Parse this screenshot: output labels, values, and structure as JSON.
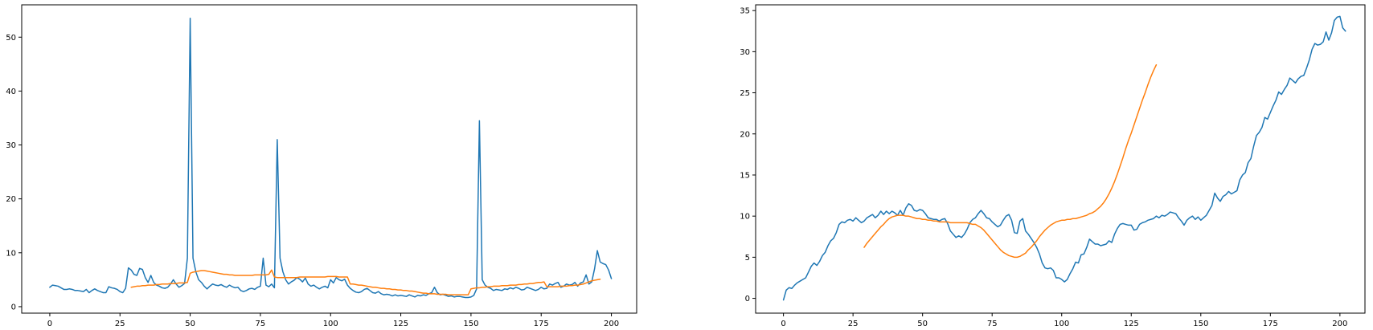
{
  "colors": {
    "series_1": "#1f77b4",
    "series_2": "#ff7f0e"
  },
  "chart_data": [
    {
      "type": "line",
      "title": "",
      "xlabel": "",
      "ylabel": "",
      "xlim": [
        -10,
        209
      ],
      "ylim": [
        -1.2,
        56
      ],
      "grid": false,
      "x_ticks": [
        0,
        25,
        50,
        75,
        100,
        125,
        150,
        175,
        200
      ],
      "y_ticks": [
        0,
        10,
        20,
        30,
        40,
        50
      ],
      "series": [
        {
          "color": "#1f77b4",
          "x_start": 0,
          "x_step": 1,
          "values": [
            3.6,
            4.0,
            3.9,
            3.8,
            3.5,
            3.2,
            3.2,
            3.3,
            3.2,
            3.0,
            3.0,
            2.9,
            2.8,
            3.2,
            2.6,
            3.0,
            3.3,
            3.0,
            2.8,
            2.6,
            2.6,
            3.7,
            3.5,
            3.4,
            3.2,
            2.8,
            2.6,
            3.4,
            7.2,
            6.8,
            6.0,
            5.8,
            7.1,
            6.9,
            5.4,
            4.5,
            5.8,
            4.5,
            4.0,
            3.8,
            3.5,
            3.4,
            3.6,
            4.2,
            5.0,
            4.2,
            3.6,
            3.9,
            4.3,
            9.0,
            53.5,
            9.0,
            6.5,
            5.0,
            4.5,
            3.8,
            3.3,
            3.8,
            4.2,
            4.0,
            3.9,
            4.1,
            3.8,
            3.6,
            4.0,
            3.7,
            3.5,
            3.6,
            3.0,
            2.8,
            3.0,
            3.3,
            3.4,
            3.2,
            3.6,
            3.8,
            9.0,
            4.0,
            3.7,
            4.2,
            3.5,
            31.0,
            9.0,
            6.5,
            5.0,
            4.2,
            4.6,
            4.9,
            5.4,
            5.1,
            4.6,
            5.3,
            4.2,
            3.8,
            4.0,
            3.6,
            3.3,
            3.6,
            3.8,
            3.5,
            5.0,
            4.4,
            5.4,
            5.0,
            4.8,
            5.1,
            4.0,
            3.4,
            3.0,
            2.7,
            2.6,
            2.8,
            3.2,
            3.4,
            3.0,
            2.6,
            2.5,
            2.8,
            2.4,
            2.2,
            2.3,
            2.2,
            2.0,
            2.2,
            2.0,
            2.1,
            2.0,
            1.9,
            2.2,
            2.0,
            1.8,
            2.1,
            2.0,
            2.2,
            2.1,
            2.4,
            2.6,
            3.6,
            2.6,
            2.2,
            2.3,
            2.1,
            1.9,
            2.0,
            1.8,
            1.9,
            1.9,
            1.8,
            1.7,
            1.7,
            1.8,
            2.1,
            3.3,
            34.5,
            5.0,
            4.0,
            3.6,
            3.4,
            3.0,
            3.2,
            3.1,
            3.0,
            3.3,
            3.2,
            3.5,
            3.3,
            3.6,
            3.4,
            3.1,
            3.2,
            3.6,
            3.4,
            3.2,
            3.0,
            3.2,
            3.6,
            3.3,
            3.4,
            4.2,
            4.0,
            4.3,
            4.5,
            3.6,
            3.8,
            4.2,
            4.0,
            4.1,
            4.5,
            3.8,
            4.4,
            4.6,
            5.9,
            4.2,
            4.6,
            7.0,
            10.4,
            8.3,
            8.0,
            7.8,
            6.8,
            5.2
          ]
        },
        {
          "color": "#ff7f0e",
          "x_start": 29,
          "x_step": 1,
          "values": [
            3.6,
            3.7,
            3.8,
            3.8,
            3.9,
            3.9,
            4.0,
            4.0,
            4.0,
            4.1,
            4.1,
            4.2,
            4.2,
            4.2,
            4.3,
            4.3,
            4.3,
            4.4,
            4.4,
            4.4,
            4.5,
            6.2,
            6.4,
            6.5,
            6.6,
            6.7,
            6.7,
            6.6,
            6.5,
            6.4,
            6.3,
            6.2,
            6.1,
            6.0,
            6.0,
            5.9,
            5.9,
            5.8,
            5.8,
            5.8,
            5.8,
            5.8,
            5.8,
            5.8,
            5.9,
            5.9,
            5.9,
            5.9,
            5.9,
            6.0,
            6.8,
            5.5,
            5.4,
            5.4,
            5.4,
            5.4,
            5.4,
            5.4,
            5.4,
            5.4,
            5.5,
            5.5,
            5.5,
            5.5,
            5.5,
            5.5,
            5.5,
            5.5,
            5.5,
            5.5,
            5.6,
            5.6,
            5.6,
            5.6,
            5.5,
            5.5,
            5.5,
            5.5,
            4.2,
            4.2,
            4.1,
            4.0,
            4.0,
            3.9,
            3.8,
            3.7,
            3.6,
            3.6,
            3.5,
            3.4,
            3.4,
            3.3,
            3.3,
            3.2,
            3.2,
            3.1,
            3.1,
            3.0,
            3.0,
            2.9,
            2.9,
            2.8,
            2.7,
            2.6,
            2.5,
            2.5,
            2.4,
            2.4,
            2.4,
            2.3,
            2.3,
            2.3,
            2.3,
            2.2,
            2.2,
            2.2,
            2.2,
            2.2,
            2.2,
            2.2,
            2.2,
            3.3,
            3.4,
            3.5,
            3.5,
            3.6,
            3.6,
            3.7,
            3.7,
            3.8,
            3.8,
            3.8,
            3.9,
            3.9,
            3.9,
            4.0,
            4.0,
            4.0,
            4.1,
            4.1,
            4.2,
            4.2,
            4.3,
            4.3,
            4.4,
            4.5,
            4.5,
            4.6,
            3.7,
            3.7,
            3.7,
            3.7,
            3.7,
            3.8,
            3.8,
            3.8,
            3.9,
            3.9,
            4.0,
            4.0,
            4.1,
            4.2,
            4.4,
            4.6,
            4.8,
            4.9,
            5.0,
            5.1
          ]
        }
      ]
    },
    {
      "type": "line",
      "title": "",
      "xlabel": "",
      "ylabel": "",
      "xlim": [
        -10,
        209
      ],
      "ylim": [
        -1.8,
        35.7
      ],
      "grid": false,
      "x_ticks": [
        0,
        25,
        50,
        75,
        100,
        125,
        150,
        175,
        200
      ],
      "y_ticks": [
        0,
        5,
        10,
        15,
        20,
        25,
        30,
        35
      ],
      "series": [
        {
          "color": "#1f77b4",
          "x_start": 0,
          "x_step": 1,
          "values": [
            -0.2,
            1.0,
            1.3,
            1.2,
            1.6,
            1.9,
            2.1,
            2.3,
            2.5,
            3.2,
            3.9,
            4.3,
            4.0,
            4.5,
            5.2,
            5.6,
            6.4,
            7.0,
            7.3,
            8.0,
            9.0,
            9.3,
            9.2,
            9.5,
            9.6,
            9.4,
            9.8,
            9.5,
            9.2,
            9.4,
            9.8,
            10.0,
            10.2,
            9.8,
            10.1,
            10.6,
            10.2,
            10.6,
            10.3,
            10.6,
            10.4,
            10.1,
            10.7,
            10.1,
            11.0,
            11.5,
            11.3,
            10.7,
            10.6,
            10.8,
            10.7,
            10.3,
            9.8,
            9.7,
            9.6,
            9.6,
            9.4,
            9.6,
            9.7,
            9.1,
            8.2,
            7.8,
            7.4,
            7.6,
            7.4,
            7.8,
            8.4,
            9.2,
            9.6,
            9.8,
            10.3,
            10.7,
            10.3,
            9.8,
            9.7,
            9.3,
            9.0,
            8.7,
            8.9,
            9.5,
            10.0,
            10.2,
            9.5,
            8.0,
            7.9,
            9.4,
            9.7,
            8.2,
            7.8,
            7.3,
            6.8,
            6.2,
            5.4,
            4.3,
            3.7,
            3.6,
            3.7,
            3.4,
            2.5,
            2.5,
            2.3,
            2.0,
            2.3,
            3.0,
            3.6,
            4.4,
            4.3,
            5.3,
            5.4,
            6.2,
            7.2,
            6.9,
            6.6,
            6.6,
            6.4,
            6.5,
            6.6,
            7.0,
            6.8,
            7.8,
            8.5,
            9.0,
            9.1,
            9.0,
            8.9,
            8.9,
            8.3,
            8.4,
            9.0,
            9.2,
            9.3,
            9.5,
            9.6,
            9.7,
            10.0,
            9.8,
            10.1,
            10.0,
            10.2,
            10.5,
            10.4,
            10.3,
            9.8,
            9.4,
            8.9,
            9.5,
            9.8,
            10.0,
            9.6,
            9.9,
            9.5,
            9.8,
            10.1,
            10.7,
            11.3,
            12.8,
            12.2,
            11.8,
            12.4,
            12.6,
            13.0,
            12.7,
            12.9,
            13.1,
            14.4,
            15.0,
            15.3,
            16.5,
            17.0,
            18.5,
            19.8,
            20.2,
            20.8,
            22.0,
            21.8,
            22.6,
            23.4,
            24.1,
            25.1,
            24.8,
            25.4,
            25.9,
            26.8,
            26.5,
            26.2,
            26.7,
            27.0,
            27.1,
            28.0,
            29.0,
            30.3,
            31.0,
            30.8,
            30.9,
            31.2,
            32.4,
            31.4,
            32.3,
            33.8,
            34.2,
            34.3,
            32.9,
            32.5
          ]
        },
        {
          "color": "#ff7f0e",
          "x_start": 29,
          "x_step": 1,
          "values": [
            6.2,
            6.7,
            7.1,
            7.5,
            7.9,
            8.3,
            8.7,
            9.0,
            9.4,
            9.7,
            9.9,
            10.0,
            10.1,
            10.1,
            10.1,
            10.0,
            10.0,
            9.9,
            9.8,
            9.7,
            9.7,
            9.6,
            9.6,
            9.5,
            9.5,
            9.4,
            9.4,
            9.3,
            9.3,
            9.3,
            9.3,
            9.2,
            9.2,
            9.2,
            9.2,
            9.2,
            9.2,
            9.2,
            9.1,
            9.0,
            9.0,
            8.8,
            8.6,
            8.3,
            7.9,
            7.5,
            7.1,
            6.7,
            6.3,
            5.9,
            5.6,
            5.4,
            5.2,
            5.1,
            5.0,
            5.0,
            5.1,
            5.3,
            5.5,
            5.9,
            6.2,
            6.6,
            7.0,
            7.5,
            7.9,
            8.3,
            8.6,
            8.9,
            9.1,
            9.3,
            9.4,
            9.5,
            9.5,
            9.6,
            9.6,
            9.7,
            9.7,
            9.8,
            9.9,
            10.0,
            10.1,
            10.3,
            10.4,
            10.6,
            10.9,
            11.2,
            11.6,
            12.1,
            12.7,
            13.4,
            14.2,
            15.1,
            16.1,
            17.1,
            18.2,
            19.2,
            20.1,
            21.1,
            22.1,
            23.1,
            24.1,
            25.0,
            26.0,
            26.9,
            27.7,
            28.4
          ]
        }
      ]
    }
  ]
}
